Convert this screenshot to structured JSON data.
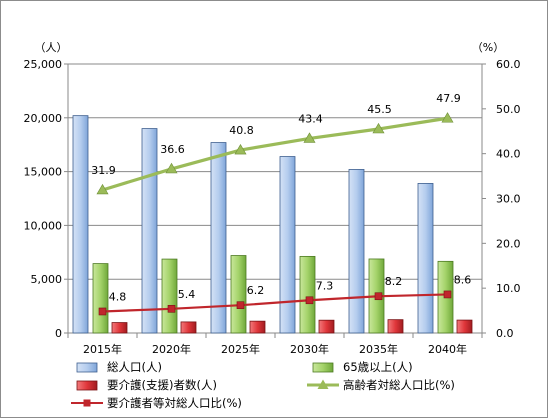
{
  "chart_data": {
    "type": "bar",
    "categories": [
      "2015年",
      "2020年",
      "2025年",
      "2030年",
      "2035年",
      "2040年"
    ],
    "left_axis": {
      "unit_label": "（人）",
      "ylim": [
        0,
        25000
      ],
      "ticks": [
        "0",
        "5,000",
        "10,000",
        "15,000",
        "20,000",
        "25,000"
      ]
    },
    "right_axis": {
      "unit_label": "（%）",
      "ylim": [
        0,
        60
      ],
      "ticks": [
        "0.0",
        "10.0",
        "20.0",
        "30.0",
        "40.0",
        "50.0",
        "60.0"
      ]
    },
    "grid": true,
    "legend_position": "bottom",
    "series": [
      {
        "name": "総人口(人)",
        "kind": "bar",
        "axis": "left",
        "color": "#a9c4ea",
        "values": [
          20200,
          19000,
          17700,
          16400,
          15200,
          13900
        ]
      },
      {
        "name": "65歳以上(人)",
        "kind": "bar",
        "axis": "left",
        "color": "#a6d36c",
        "values": [
          6450,
          6870,
          7200,
          7120,
          6880,
          6660
        ]
      },
      {
        "name": "要介護(支援)者数(人)",
        "kind": "bar",
        "axis": "left",
        "color": "#e0363a",
        "values": [
          970,
          1030,
          1100,
          1190,
          1240,
          1200
        ]
      },
      {
        "name": "高齢者対総人口比(%)",
        "kind": "line",
        "axis": "right",
        "color": "#9bbb59",
        "marker": "triangle",
        "values": [
          31.9,
          36.6,
          40.8,
          43.4,
          45.5,
          47.9
        ],
        "labels": [
          "31.9",
          "36.6",
          "40.8",
          "43.4",
          "45.5",
          "47.9"
        ]
      },
      {
        "name": "要介護者等対総人口比(%)",
        "kind": "line",
        "axis": "right",
        "color": "#c0262c",
        "marker": "square",
        "values": [
          4.8,
          5.4,
          6.2,
          7.3,
          8.2,
          8.6
        ],
        "labels": [
          "4.8",
          "5.4",
          "6.2",
          "7.3",
          "8.2",
          "8.6"
        ]
      }
    ]
  }
}
